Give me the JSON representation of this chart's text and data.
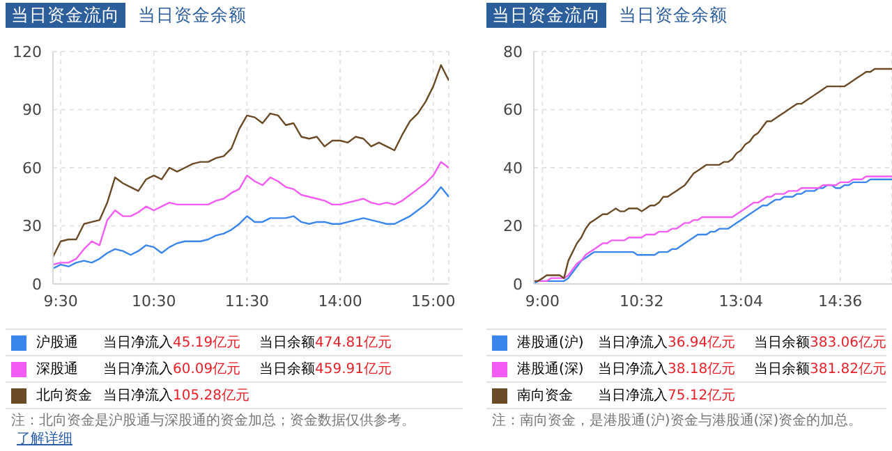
{
  "chart_data": [
    {
      "type": "line",
      "title": "当日资金流向",
      "subtitle": "当日资金余额",
      "categories": [
        null,
        "9:30",
        null,
        null,
        null,
        null,
        null,
        null,
        null,
        null,
        null,
        null,
        null,
        "10:30",
        null,
        null,
        null,
        null,
        null,
        null,
        null,
        null,
        null,
        null,
        null,
        "11:30",
        null,
        null,
        null,
        null,
        null,
        null,
        null,
        null,
        null,
        null,
        null,
        "14:00",
        null,
        null,
        null,
        null,
        null,
        null,
        null,
        null,
        null,
        null,
        null,
        "15:00",
        null,
        null
      ],
      "ylim": [
        0,
        120
      ],
      "yticks": [
        0,
        30,
        60,
        90,
        120
      ],
      "grid": true,
      "legend": "bottom",
      "marker": "none",
      "line_style": "solid",
      "series": [
        {
          "name": "沪股通",
          "color": "#3a86ec",
          "values": [
            8,
            10,
            9,
            11,
            12,
            11,
            13,
            16,
            18,
            17,
            15,
            17,
            20,
            19,
            16,
            19,
            21,
            22,
            22,
            22,
            23,
            25,
            26,
            28,
            31,
            35,
            32,
            32,
            34,
            34,
            34,
            35,
            32,
            31,
            32,
            32,
            31,
            31,
            32,
            33,
            34,
            33,
            32,
            31,
            31,
            33,
            35,
            38,
            41,
            45,
            50,
            45
          ]
        },
        {
          "name": "深股通",
          "color": "#f25cf2",
          "values": [
            10,
            11,
            11,
            13,
            18,
            22,
            20,
            33,
            38,
            35,
            35,
            37,
            40,
            38,
            40,
            42,
            41,
            41,
            41,
            41,
            41,
            43,
            44,
            47,
            49,
            56,
            53,
            51,
            55,
            53,
            50,
            49,
            46,
            45,
            44,
            43,
            41,
            41,
            42,
            43,
            44,
            42,
            41,
            42,
            41,
            43,
            46,
            49,
            52,
            56,
            63,
            60
          ]
        },
        {
          "name": "北向资金",
          "color": "#6b4a26",
          "values": [
            14,
            22,
            23,
            23,
            31,
            32,
            33,
            42,
            55,
            52,
            50,
            48,
            54,
            56,
            54,
            60,
            58,
            60,
            62,
            63,
            63,
            65,
            66,
            70,
            80,
            87,
            86,
            83,
            88,
            87,
            82,
            83,
            76,
            75,
            76,
            71,
            74,
            74,
            73,
            76,
            75,
            71,
            73,
            71,
            69,
            77,
            84,
            88,
            94,
            102,
            113,
            105
          ]
        }
      ],
      "annotations": [
        "当日净流入45.19亿元",
        "当日余额474.81亿元",
        "当日净流入60.09亿元",
        "当日余额459.91亿元",
        "当日净流入105.28亿元",
        "注：北向资金是沪股通与深股通的资金加总；资金数据仅供参考。",
        "了解详细"
      ]
    },
    {
      "type": "line",
      "title": "当日资金流向",
      "subtitle": "当日资金余额",
      "categories": [
        null,
        null,
        "9:00",
        null,
        null,
        null,
        null,
        null,
        null,
        null,
        null,
        null,
        null,
        null,
        null,
        null,
        null,
        null,
        null,
        null,
        null,
        null,
        null,
        null,
        null,
        "10:32",
        null,
        null,
        null,
        null,
        null,
        null,
        null,
        null,
        null,
        null,
        null,
        null,
        null,
        null,
        null,
        null,
        null,
        null,
        null,
        null,
        null,
        null,
        "13:04",
        null,
        null,
        null,
        null,
        null,
        null,
        null,
        null,
        null,
        null,
        null,
        null,
        null,
        null,
        null,
        null,
        null,
        null,
        null,
        null,
        null,
        null,
        "14:36",
        null,
        null,
        null,
        null,
        null,
        null,
        null,
        null,
        null,
        null,
        null,
        null
      ],
      "ylim": [
        0,
        80
      ],
      "yticks": [
        0,
        20,
        40,
        60,
        80
      ],
      "grid": true,
      "legend": "bottom",
      "marker": "none",
      "line_style": "solid",
      "series": [
        {
          "name": "港股通(沪)",
          "color": "#3a86ec",
          "values": [
            0,
            1,
            1,
            1,
            1,
            1,
            1,
            1,
            2,
            4,
            6,
            8,
            9,
            10,
            11,
            11,
            11,
            11,
            11,
            11,
            11,
            11,
            11,
            11,
            10,
            10,
            10,
            10,
            10,
            11,
            11,
            11,
            12,
            12,
            13,
            14,
            15,
            16,
            17,
            17,
            17,
            18,
            18,
            19,
            19,
            19,
            20,
            21,
            22,
            23,
            24,
            25,
            26,
            27,
            27,
            28,
            29,
            29,
            30,
            30,
            30,
            31,
            31,
            32,
            32,
            32,
            33,
            33,
            34,
            34,
            33,
            33,
            34,
            34,
            35,
            35,
            35,
            35,
            36,
            36,
            36,
            36,
            36,
            36
          ]
        },
        {
          "name": "港股通(深)",
          "color": "#f25cf2",
          "values": [
            1,
            1,
            1,
            1,
            2,
            2,
            2,
            2,
            3,
            5,
            7,
            8,
            10,
            11,
            12,
            13,
            14,
            14,
            15,
            15,
            15,
            15,
            16,
            16,
            16,
            16,
            17,
            17,
            17,
            18,
            18,
            18,
            19,
            19,
            20,
            21,
            21,
            22,
            22,
            23,
            23,
            23,
            23,
            23,
            23,
            23,
            23,
            24,
            25,
            26,
            27,
            28,
            28,
            29,
            30,
            30,
            31,
            31,
            31,
            32,
            32,
            32,
            33,
            33,
            33,
            33,
            33,
            34,
            34,
            34,
            34,
            35,
            35,
            35,
            36,
            36,
            36,
            37,
            37,
            37,
            37,
            37,
            37,
            37
          ]
        },
        {
          "name": "南向资金",
          "color": "#6b4a26",
          "values": [
            1,
            1,
            2,
            3,
            3,
            3,
            3,
            2,
            8,
            11,
            14,
            16,
            19,
            21,
            22,
            23,
            24,
            24,
            25,
            26,
            25,
            25,
            26,
            26,
            26,
            25,
            26,
            27,
            27,
            28,
            30,
            30,
            31,
            32,
            33,
            34,
            36,
            38,
            39,
            40,
            41,
            41,
            41,
            41,
            42,
            42,
            43,
            45,
            46,
            48,
            49,
            51,
            52,
            54,
            56,
            56,
            57,
            58,
            59,
            60,
            61,
            62,
            62,
            63,
            64,
            65,
            66,
            67,
            68,
            68,
            68,
            68,
            68,
            69,
            70,
            71,
            72,
            73,
            73,
            74,
            74,
            74,
            74,
            74
          ]
        }
      ],
      "annotations": [
        "当日净流入36.94亿元",
        "当日余额383.06亿元",
        "当日净流入38.18亿元",
        "当日余额381.82亿元",
        "当日净流入75.12亿元",
        "注：南向资金，是港股通(沪)资金与港股通(深)资金的加总。"
      ]
    }
  ]
}
